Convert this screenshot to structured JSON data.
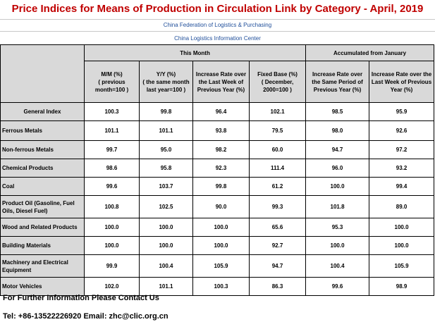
{
  "title": "Price Indices for Means of Production in Circulation Link by Category - April, 2019",
  "org1": "China Federation of Logistics & Purchasing",
  "org2": "China Logistics Information Center",
  "groups": {
    "this_month": "This Month",
    "accumulated": "Accumulated from January"
  },
  "columns": [
    "M/M (%)\n( previous month=100 )",
    "Y/Y (%)\n( the same month last year=100 )",
    "Increase Rate over the Last Week of Previous Year (%)",
    "Fixed Base (%)\n( December, 2000=100 )",
    "Increase Rate over the Same Period of Previous Year (%)",
    "Increase Rate over the Last Week of Previous Year (%)"
  ],
  "rows": [
    {
      "label": "General Index",
      "values": [
        "100.3",
        "99.8",
        "96.4",
        "102.1",
        "98.5",
        "95.9"
      ]
    },
    {
      "label": "Ferrous Metals",
      "values": [
        "101.1",
        "101.1",
        "93.8",
        "79.5",
        "98.0",
        "92.6"
      ]
    },
    {
      "label": "Non-ferrous Metals",
      "values": [
        "99.7",
        "95.0",
        "98.2",
        "60.0",
        "94.7",
        "97.2"
      ]
    },
    {
      "label": "Chemical Products",
      "values": [
        "98.6",
        "95.8",
        "92.3",
        "111.4",
        "96.0",
        "93.2"
      ]
    },
    {
      "label": "Coal",
      "values": [
        "99.6",
        "103.7",
        "99.8",
        "61.2",
        "100.0",
        "99.4"
      ]
    },
    {
      "label": "Product Oil (Gasoline, Fuel Oils, Diesel Fuel)",
      "values": [
        "100.8",
        "102.5",
        "90.0",
        "99.3",
        "101.8",
        "89.0"
      ]
    },
    {
      "label": "Wood and Related Products",
      "values": [
        "100.0",
        "100.0",
        "100.0",
        "65.6",
        "95.3",
        "100.0"
      ]
    },
    {
      "label": "Building Materials",
      "values": [
        "100.0",
        "100.0",
        "100.0",
        "92.7",
        "100.0",
        "100.0"
      ]
    },
    {
      "label": "Machinery and Electrical Equipment",
      "values": [
        "99.9",
        "100.4",
        "105.9",
        "94.7",
        "100.4",
        "105.9"
      ]
    },
    {
      "label": "Motor Vehicles",
      "values": [
        "102.0",
        "101.1",
        "100.3",
        "86.3",
        "99.6",
        "98.9"
      ]
    }
  ],
  "footer": {
    "contact": "For Further Information Please Contact Us",
    "details": "Tel: +86-13522226920  Email: zhc@clic.org.cn"
  }
}
